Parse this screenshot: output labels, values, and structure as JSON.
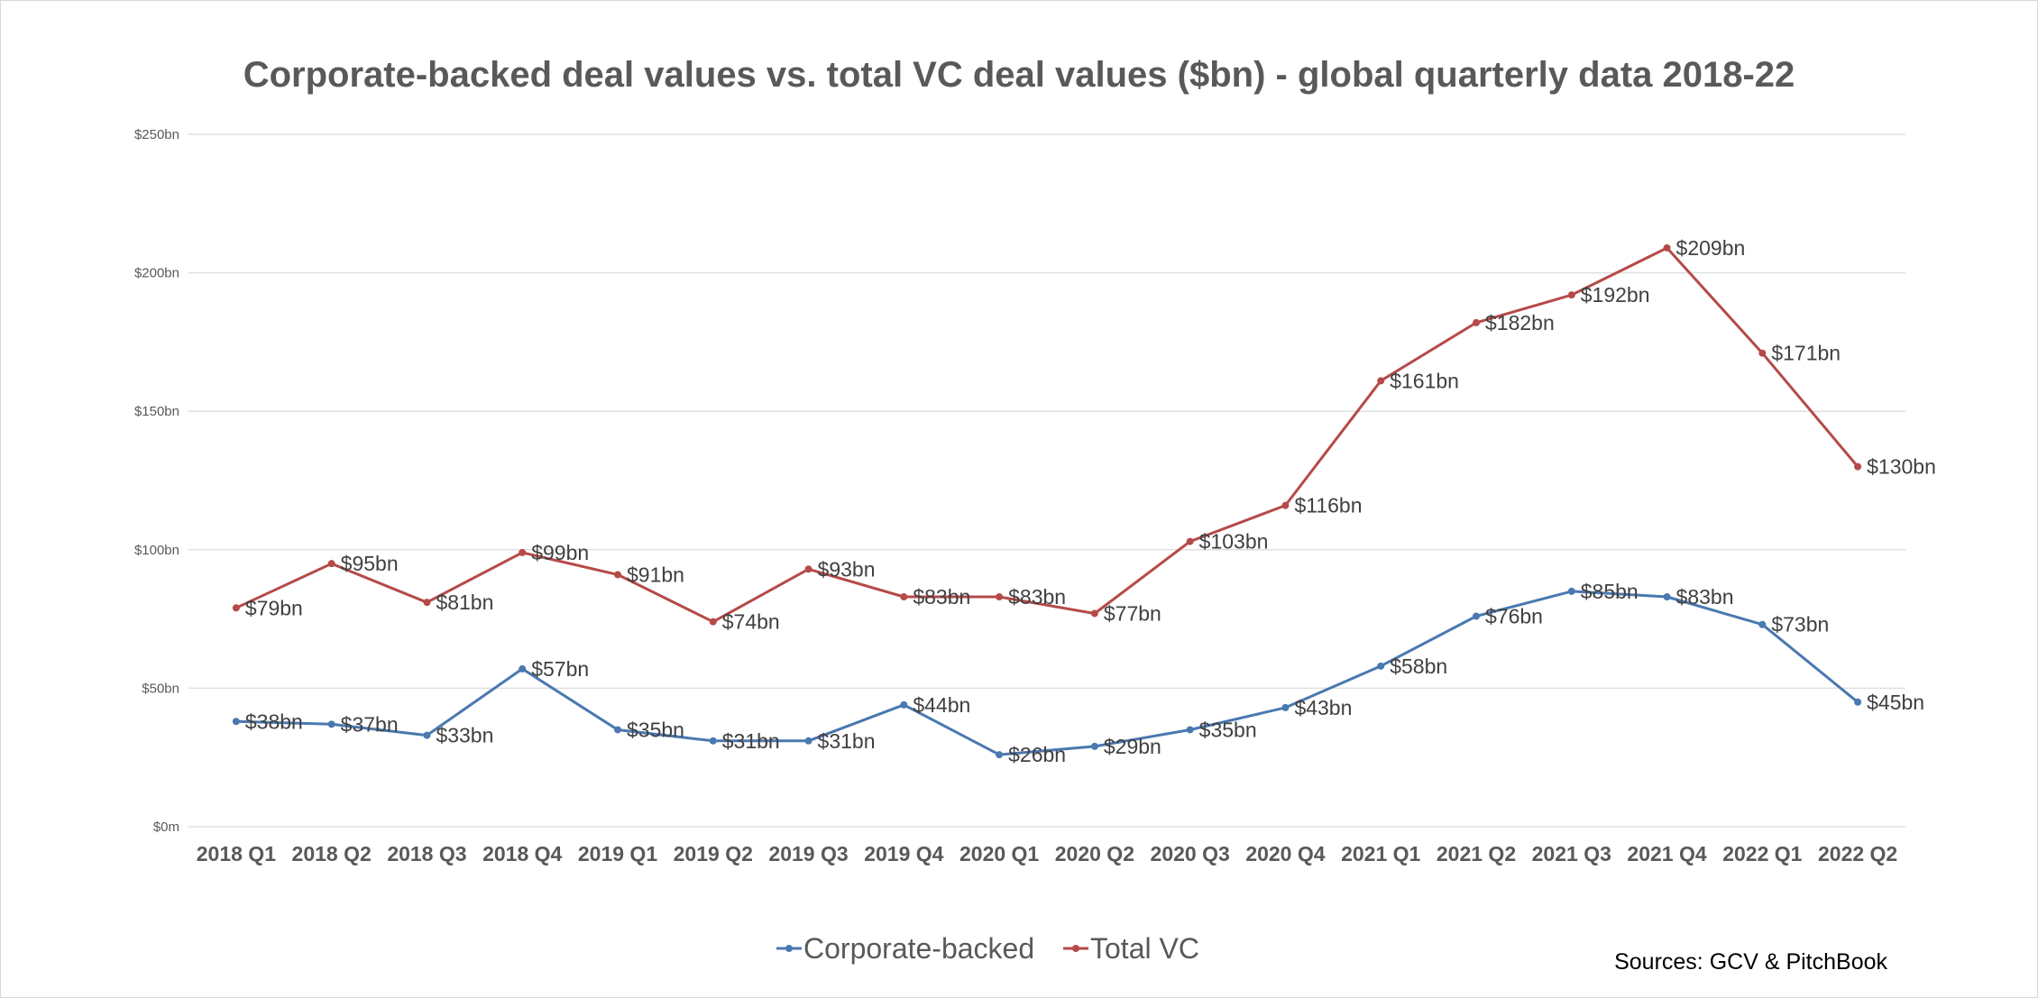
{
  "chart_data": {
    "type": "line",
    "title": "Corporate-backed deal values vs. total VC deal values ($bn) - global quarterly data 2018-22",
    "categories": [
      "2018 Q1",
      "2018 Q2",
      "2018 Q3",
      "2018 Q4",
      "2019 Q1",
      "2019 Q2",
      "2019 Q3",
      "2019 Q4",
      "2020 Q1",
      "2020 Q2",
      "2020 Q3",
      "2020 Q4",
      "2021 Q1",
      "2021 Q2",
      "2021 Q3",
      "2021 Q4",
      "2022 Q1",
      "2022 Q2"
    ],
    "series": [
      {
        "name": "Corporate-backed",
        "color": "#4a78b0",
        "values": [
          38,
          37,
          33,
          57,
          35,
          31,
          31,
          44,
          26,
          29,
          35,
          43,
          58,
          76,
          85,
          83,
          73,
          45
        ],
        "labels": [
          "$38bn",
          "$37bn",
          "$33bn",
          "$57bn",
          "$35bn",
          "$31bn",
          "$31bn",
          "$44bn",
          "$26bn",
          "$29bn",
          "$35bn",
          "$43bn",
          "$58bn",
          "$76bn",
          "$85bn",
          "$83bn",
          "$73bn",
          "$45bn"
        ]
      },
      {
        "name": "Total VC",
        "color": "#b54a48",
        "values": [
          79,
          95,
          81,
          99,
          91,
          74,
          93,
          83,
          83,
          77,
          103,
          116,
          161,
          182,
          192,
          209,
          171,
          130
        ],
        "labels": [
          "$79bn",
          "$95bn",
          "$81bn",
          "$99bn",
          "$91bn",
          "$74bn",
          "$93bn",
          "$83bn",
          "$83bn",
          "$77bn",
          "$103bn",
          "$116bn",
          "$161bn",
          "$182bn",
          "$192bn",
          "$209bn",
          "$171bn",
          "$130bn"
        ]
      }
    ],
    "ylim": [
      0,
      250
    ],
    "yticks": [
      0,
      50,
      100,
      150,
      200,
      250
    ],
    "ytick_labels": [
      "$0m",
      "$50bn",
      "$100bn",
      "$150bn",
      "$200bn",
      "$250bn"
    ],
    "grid": true,
    "legend": "bottom"
  },
  "source_note": "Sources: GCV & PitchBook"
}
